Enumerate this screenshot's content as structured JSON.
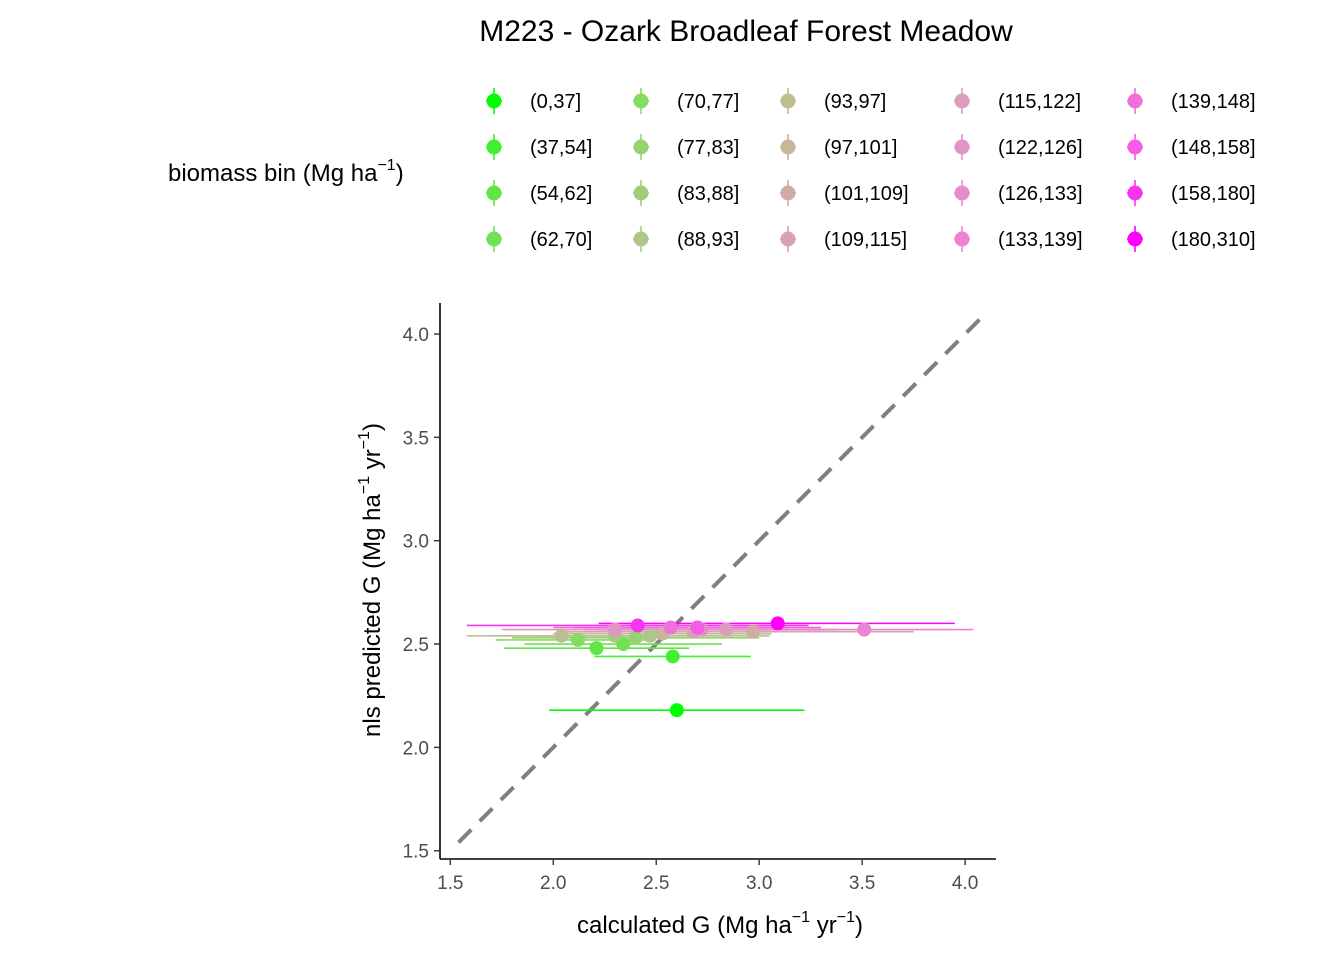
{
  "chart_data": {
    "type": "scatter",
    "title": "M223 - Ozark Broadleaf Forest Meadow",
    "xlabel": {
      "prefix": "calculated G (Mg ha",
      "sup1": "−1",
      "mid": " yr",
      "sup2": "−1",
      "suffix": ")"
    },
    "ylabel": {
      "prefix": "nls predicted G (Mg ha",
      "sup1": "−1",
      "mid": " yr",
      "sup2": "−1",
      "suffix": ")"
    },
    "legend_title": {
      "prefix": "biomass bin (Mg ha",
      "sup": "−1",
      "suffix": ")"
    },
    "legend_position": "top",
    "xlim": [
      1.45,
      4.15
    ],
    "ylim": [
      1.46,
      4.15
    ],
    "xticks": [
      1.5,
      2.0,
      2.5,
      3.0,
      3.5,
      4.0
    ],
    "yticks": [
      1.5,
      2.0,
      2.5,
      3.0,
      3.5,
      4.0
    ],
    "xtick_labels": [
      "1.5",
      "2.0",
      "2.5",
      "3.0",
      "3.5",
      "4.0"
    ],
    "ytick_labels": [
      "1.5",
      "2.0",
      "2.5",
      "3.0",
      "3.5",
      "4.0"
    ],
    "reference_line": {
      "type": "identity",
      "style": "dashed",
      "color": "#808080"
    },
    "series": [
      {
        "name": "(0,37]",
        "color": "#00ff00",
        "x": 2.6,
        "y": 2.18,
        "xmin": 1.98,
        "xmax": 3.22
      },
      {
        "name": "(37,54]",
        "color": "#44ee33",
        "x": 2.58,
        "y": 2.44,
        "xmin": 2.2,
        "xmax": 2.96
      },
      {
        "name": "(54,62]",
        "color": "#5fe544",
        "x": 2.21,
        "y": 2.48,
        "xmin": 1.76,
        "xmax": 2.66
      },
      {
        "name": "(62,70]",
        "color": "#70e055",
        "x": 2.34,
        "y": 2.5,
        "xmin": 1.86,
        "xmax": 2.82
      },
      {
        "name": "(70,77]",
        "color": "#85dc60",
        "x": 2.12,
        "y": 2.52,
        "xmin": 1.72,
        "xmax": 2.5
      },
      {
        "name": "(77,83]",
        "color": "#96d370",
        "x": 2.4,
        "y": 2.53,
        "xmin": 1.8,
        "xmax": 3.0
      },
      {
        "name": "(83,88]",
        "color": "#a2cc7c",
        "x": 2.3,
        "y": 2.54,
        "xmin": 1.74,
        "xmax": 2.88
      },
      {
        "name": "(88,93]",
        "color": "#afc68a",
        "x": 2.47,
        "y": 2.54,
        "xmin": 1.9,
        "xmax": 3.05
      },
      {
        "name": "(93,97]",
        "color": "#bcbe92",
        "x": 2.04,
        "y": 2.54,
        "xmin": 1.58,
        "xmax": 2.5
      },
      {
        "name": "(97,101]",
        "color": "#c9b49c",
        "x": 2.53,
        "y": 2.55,
        "xmin": 2.0,
        "xmax": 3.06
      },
      {
        "name": "(101,109]",
        "color": "#d0aba4",
        "x": 2.97,
        "y": 2.56,
        "xmin": 2.2,
        "xmax": 3.75
      },
      {
        "name": "(109,115]",
        "color": "#d6a3ae",
        "x": 2.68,
        "y": 2.56,
        "xmin": 2.02,
        "xmax": 3.32
      },
      {
        "name": "(115,122]",
        "color": "#dc9cbb",
        "x": 2.84,
        "y": 2.57,
        "xmin": 2.3,
        "xmax": 3.38
      },
      {
        "name": "(122,126]",
        "color": "#e295c5",
        "x": 2.3,
        "y": 2.57,
        "xmin": 1.75,
        "xmax": 2.85
      },
      {
        "name": "(126,133]",
        "color": "#e68ccc",
        "x": 2.72,
        "y": 2.57,
        "xmin": 2.15,
        "xmax": 3.3
      },
      {
        "name": "(133,139]",
        "color": "#ec82d4",
        "x": 3.51,
        "y": 2.57,
        "xmin": 2.96,
        "xmax": 4.04
      },
      {
        "name": "(139,148]",
        "color": "#f070d9",
        "x": 2.57,
        "y": 2.58,
        "xmin": 2.0,
        "xmax": 3.14
      },
      {
        "name": "(148,158]",
        "color": "#f55ce3",
        "x": 2.7,
        "y": 2.58,
        "xmin": 2.1,
        "xmax": 3.3
      },
      {
        "name": "(158,180]",
        "color": "#f536ee",
        "x": 2.41,
        "y": 2.59,
        "xmin": 1.58,
        "xmax": 3.24
      },
      {
        "name": "(180,310]",
        "color": "#ff00ff",
        "x": 3.09,
        "y": 2.6,
        "xmin": 2.22,
        "xmax": 3.95
      }
    ]
  }
}
